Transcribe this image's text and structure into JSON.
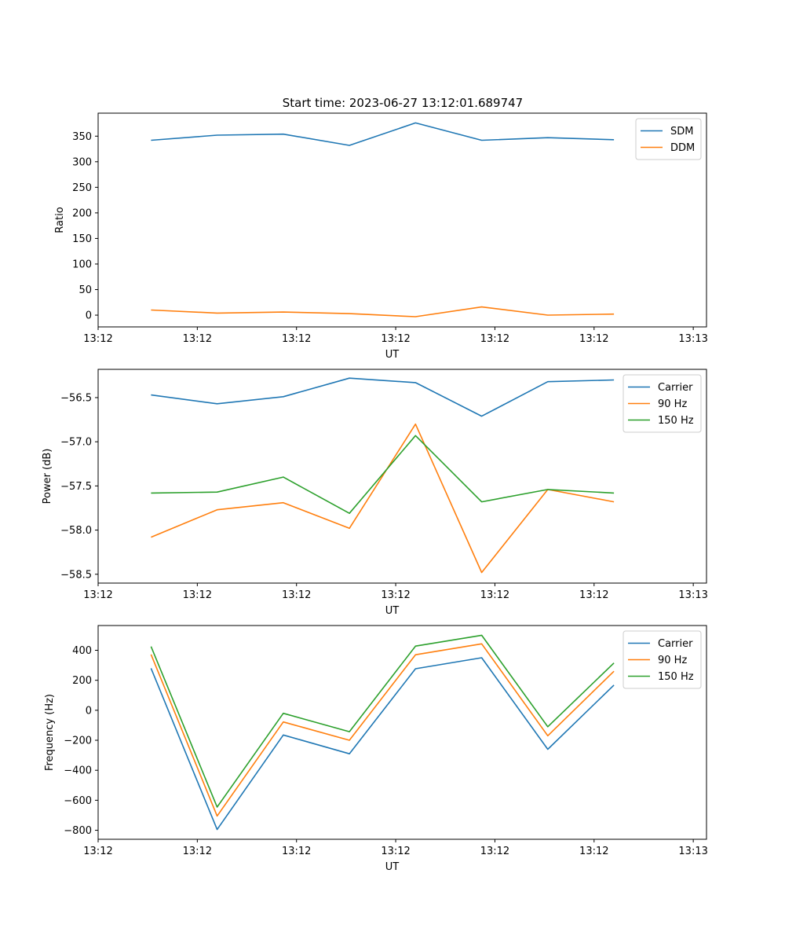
{
  "figure": {
    "title": "Start time: 2023-06-27 13:12:01.689747"
  },
  "chart_data": [
    {
      "type": "line",
      "title": "Start time: 2023-06-27 13:12:01.689747",
      "xlabel": "UT",
      "ylabel": "Ratio",
      "x": [
        1,
        2,
        3,
        4,
        5,
        6,
        7,
        8
      ],
      "xlim": [
        0.2,
        9.4
      ],
      "xticks": [
        0.2,
        1.7,
        3.2,
        4.7,
        6.2,
        7.7,
        9.2
      ],
      "xtick_labels": [
        "13:12",
        "13:12",
        "13:12",
        "13:12",
        "13:12",
        "13:12",
        "13:13"
      ],
      "ylim": [
        -23,
        395
      ],
      "yticks": [
        0,
        50,
        100,
        150,
        200,
        250,
        300,
        350
      ],
      "legend_position": "upper right",
      "grid": false,
      "series": [
        {
          "name": "SDM",
          "color": "#1f77b4",
          "values": [
            342,
            352,
            354,
            332,
            376,
            342,
            347,
            343
          ]
        },
        {
          "name": "DDM",
          "color": "#ff7f0e",
          "values": [
            10,
            4,
            6,
            3,
            -3,
            16,
            0,
            2
          ]
        }
      ]
    },
    {
      "type": "line",
      "xlabel": "UT",
      "ylabel": "Power (dB)",
      "x": [
        1,
        2,
        3,
        4,
        5,
        6,
        7,
        8
      ],
      "xlim": [
        0.2,
        9.4
      ],
      "xticks": [
        0.2,
        1.7,
        3.2,
        4.7,
        6.2,
        7.7,
        9.2
      ],
      "xtick_labels": [
        "13:12",
        "13:12",
        "13:12",
        "13:12",
        "13:12",
        "13:12",
        "13:13"
      ],
      "ylim": [
        -58.6,
        -56.18
      ],
      "yticks": [
        -58.5,
        -58.0,
        -57.5,
        -57.0,
        -56.5
      ],
      "ytick_labels": [
        "−58.5",
        "−58.0",
        "−57.5",
        "−57.0",
        "−56.5"
      ],
      "legend_position": "upper right",
      "grid": false,
      "series": [
        {
          "name": "Carrier",
          "color": "#1f77b4",
          "values": [
            -56.47,
            -56.57,
            -56.49,
            -56.28,
            -56.33,
            -56.71,
            -56.32,
            -56.3
          ]
        },
        {
          "name": "90 Hz",
          "color": "#ff7f0e",
          "values": [
            -58.08,
            -57.77,
            -57.69,
            -57.98,
            -56.8,
            -58.48,
            -57.54,
            -57.68
          ]
        },
        {
          "name": "150 Hz",
          "color": "#2ca02c",
          "values": [
            -57.58,
            -57.57,
            -57.4,
            -57.81,
            -56.93,
            -57.68,
            -57.54,
            -57.58
          ]
        }
      ]
    },
    {
      "type": "line",
      "xlabel": "UT",
      "ylabel": "Frequency (Hz)",
      "x": [
        1,
        2,
        3,
        4,
        5,
        6,
        7,
        8
      ],
      "xlim": [
        0.2,
        9.4
      ],
      "xticks": [
        0.2,
        1.7,
        3.2,
        4.7,
        6.2,
        7.7,
        9.2
      ],
      "xtick_labels": [
        "13:12",
        "13:12",
        "13:12",
        "13:12",
        "13:12",
        "13:12",
        "13:13"
      ],
      "ylim": [
        -860,
        565
      ],
      "yticks": [
        -800,
        -600,
        -400,
        -200,
        0,
        200,
        400
      ],
      "ytick_labels": [
        "−800",
        "−600",
        "−400",
        "−200",
        "0",
        "200",
        "400"
      ],
      "legend_position": "upper right",
      "grid": false,
      "series": [
        {
          "name": "Carrier",
          "color": "#1f77b4",
          "values": [
            280,
            -795,
            -165,
            -290,
            277,
            350,
            -260,
            168
          ]
        },
        {
          "name": "90 Hz",
          "color": "#ff7f0e",
          "values": [
            372,
            -705,
            -78,
            -200,
            370,
            443,
            -170,
            260
          ]
        },
        {
          "name": "150 Hz",
          "color": "#2ca02c",
          "values": [
            425,
            -645,
            -20,
            -143,
            428,
            500,
            -110,
            315
          ]
        }
      ]
    }
  ]
}
